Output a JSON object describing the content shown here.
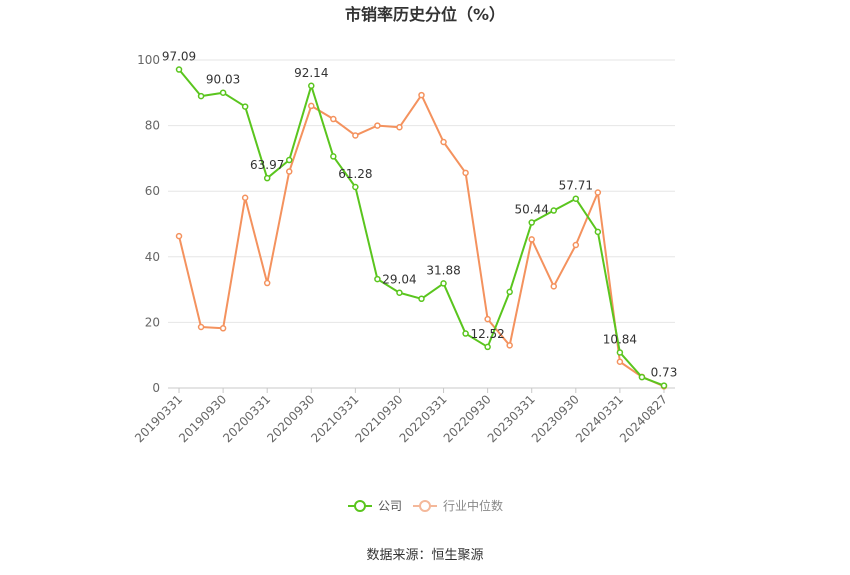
{
  "chart_data": {
    "type": "line",
    "title": "市销率历史分位（%）",
    "xlabel": "",
    "ylabel": "",
    "ylim": [
      0,
      100
    ],
    "yticks": [
      0,
      20,
      40,
      60,
      80,
      100
    ],
    "grid": true,
    "legend_position": "bottom",
    "x": [
      "20190331",
      "20190630",
      "20190930",
      "20191231",
      "20200331",
      "20200630",
      "20200930",
      "20201231",
      "20210331",
      "20210630",
      "20210930",
      "20211231",
      "20220331",
      "20220630",
      "20220930",
      "20221231",
      "20230331",
      "20230630",
      "20230930",
      "20231231",
      "20240331",
      "20240630",
      "20240827"
    ],
    "x_tick_labels": [
      "20190331",
      "20190930",
      "20200331",
      "20200930",
      "20210331",
      "20210930",
      "20220331",
      "20220930",
      "20230331",
      "20230930",
      "20240331",
      "20240827"
    ],
    "series": [
      {
        "name": "公司",
        "color": "#5ac51e",
        "values": [
          97.09,
          89.0,
          90.03,
          85.8,
          63.97,
          69.5,
          92.14,
          70.6,
          61.28,
          33.2,
          29.04,
          27.2,
          31.88,
          16.6,
          12.52,
          29.3,
          50.44,
          54.1,
          57.71,
          47.6,
          10.84,
          3.3,
          0.73
        ]
      },
      {
        "name": "行业中位数",
        "color": "#f4925e",
        "values": [
          46.3,
          18.6,
          18.2,
          58.0,
          32.0,
          66.0,
          86.0,
          82.0,
          77.0,
          80.0,
          79.5,
          89.3,
          75.0,
          65.6,
          21.0,
          13.0,
          45.3,
          31.0,
          43.6,
          59.6,
          8.0,
          3.4,
          0.5
        ]
      }
    ],
    "data_labels": [
      {
        "index": 0,
        "text": "97.09"
      },
      {
        "index": 2,
        "text": "90.03"
      },
      {
        "index": 4,
        "text": "63.97"
      },
      {
        "index": 6,
        "text": "92.14"
      },
      {
        "index": 8,
        "text": "61.28"
      },
      {
        "index": 10,
        "text": "29.04"
      },
      {
        "index": 12,
        "text": "31.88"
      },
      {
        "index": 14,
        "text": "12.52"
      },
      {
        "index": 16,
        "text": "50.44"
      },
      {
        "index": 18,
        "text": "57.71"
      },
      {
        "index": 20,
        "text": "10.84"
      },
      {
        "index": 22,
        "text": "0.73"
      }
    ]
  },
  "legend": {
    "company_label": "公司",
    "industry_label": "行业中位数"
  },
  "source": "数据来源：恒生聚源"
}
